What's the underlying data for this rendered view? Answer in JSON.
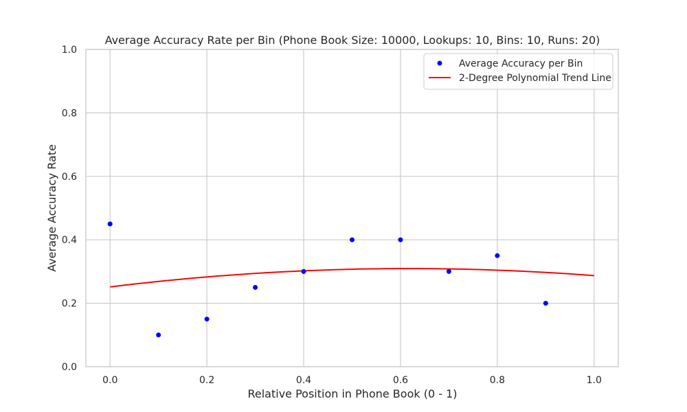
{
  "chart_data": {
    "type": "scatter",
    "title": "Average Accuracy Rate per Bin (Phone Book Size: 10000, Lookups: 10, Bins: 10, Runs: 20)",
    "xlabel": "Relative Position in Phone Book (0 - 1)",
    "ylabel": "Average Accuracy Rate",
    "xlim": [
      -0.05,
      1.05
    ],
    "ylim": [
      0.0,
      1.0
    ],
    "xticks": [
      0.0,
      0.2,
      0.4,
      0.6,
      0.8,
      1.0
    ],
    "xtick_labels": [
      "0.0",
      "0.2",
      "0.4",
      "0.6",
      "0.8",
      "1.0"
    ],
    "yticks": [
      0.0,
      0.2,
      0.4,
      0.6,
      0.8,
      1.0
    ],
    "ytick_labels": [
      "0.0",
      "0.2",
      "0.4",
      "0.6",
      "0.8",
      "1.0"
    ],
    "grid": true,
    "legend_position": "top-right",
    "series": [
      {
        "name": "Average Accuracy per Bin",
        "kind": "scatter",
        "color": "#0000ff",
        "x": [
          0.0,
          0.1,
          0.2,
          0.3,
          0.4,
          0.5,
          0.6,
          0.7,
          0.8,
          0.9
        ],
        "y": [
          0.45,
          0.1,
          0.15,
          0.25,
          0.3,
          0.4,
          0.4,
          0.3,
          0.35,
          0.2
        ]
      },
      {
        "name": "2-Degree Polynomial Trend Line",
        "kind": "line",
        "color": "#ff0000",
        "polynomial_degree": 2,
        "coefficients": [
          -0.1515,
          0.1871,
          0.2515
        ],
        "x_range": [
          0.0,
          1.0
        ]
      }
    ]
  }
}
